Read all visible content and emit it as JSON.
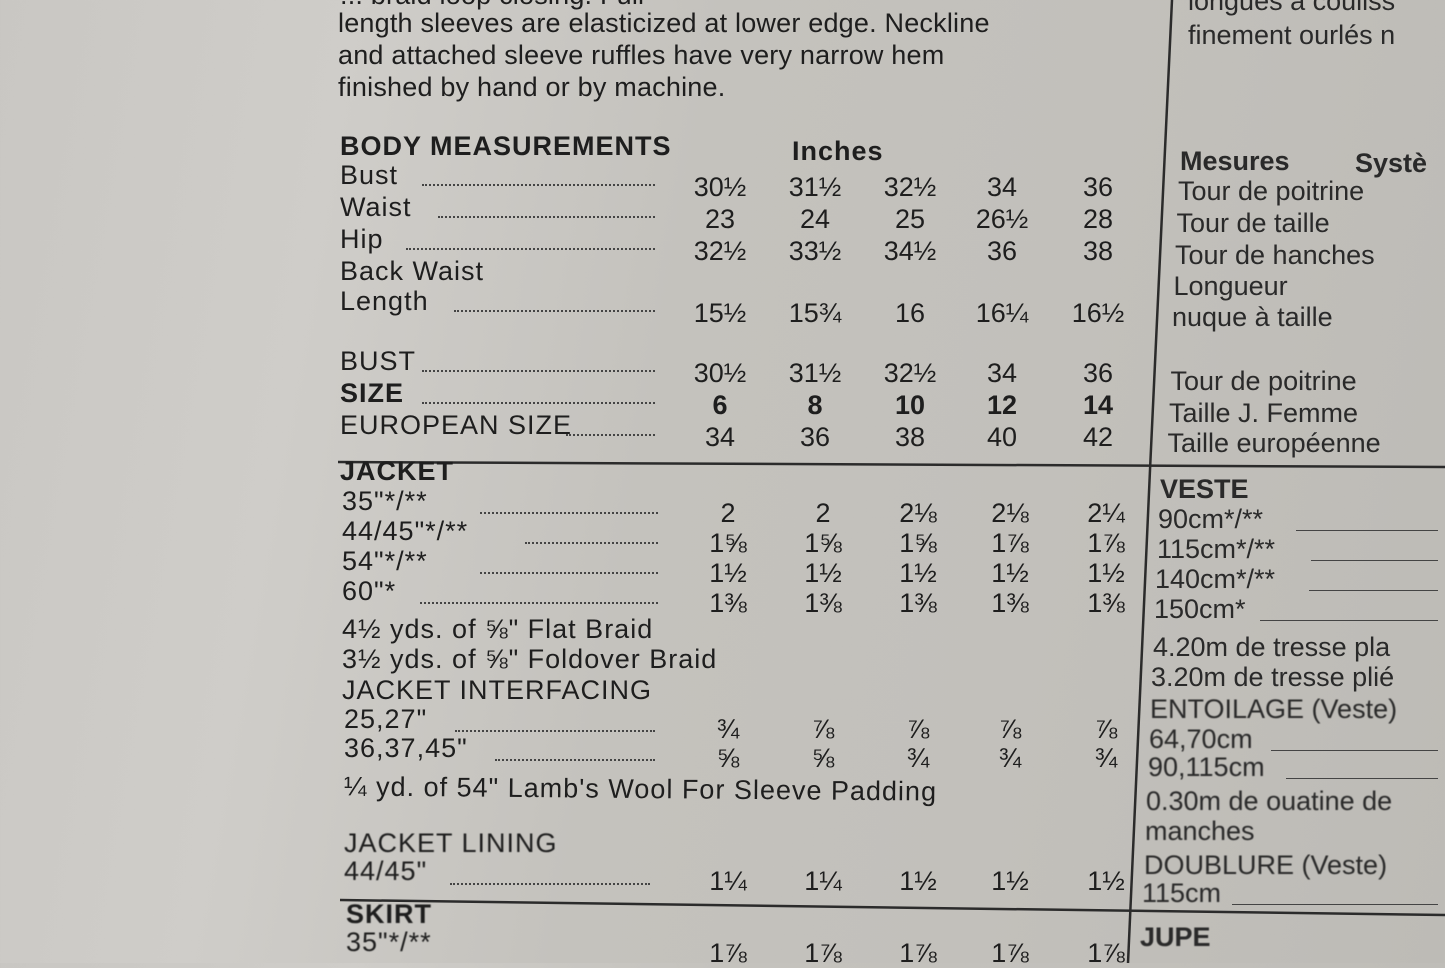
{
  "intro": {
    "lines": [
      "... braid loop closing. Full",
      "length sleeves are elasticized at lower edge. Neckline",
      "and attached sleeve ruffles have very narrow hem",
      "finished by hand or by machine."
    ]
  },
  "intro_fr": {
    "lines": [
      "longues à couliss",
      "finement ourlés n"
    ]
  },
  "body": {
    "heading": "BODY MEASUREMENTS",
    "unit": "Inches",
    "rows": [
      {
        "label": "Bust",
        "values": [
          "30½",
          "31½",
          "32½",
          "34",
          "36"
        ]
      },
      {
        "label": "Waist",
        "values": [
          "23",
          "24",
          "25",
          "26½",
          "28"
        ]
      },
      {
        "label": "Hip",
        "values": [
          "32½",
          "33½",
          "34½",
          "36",
          "38"
        ]
      },
      {
        "label": "Back Waist",
        "values": []
      },
      {
        "label": "Length",
        "values": [
          "15½",
          "15¾",
          "16",
          "16¼",
          "16½"
        ]
      },
      {
        "label": "BUST",
        "values": [
          "30½",
          "31½",
          "32½",
          "34",
          "36"
        ]
      },
      {
        "label": "SIZE",
        "values": [
          "6",
          "8",
          "10",
          "12",
          "14"
        ],
        "bold": true
      },
      {
        "label": "EUROPEAN SIZE",
        "values": [
          "34",
          "36",
          "38",
          "40",
          "42"
        ]
      }
    ]
  },
  "body_fr": {
    "heading": "Mesures",
    "heading2": "Systè",
    "rows": [
      "Tour de poitrine",
      "Tour de taille",
      "Tour de hanches",
      "Longueur",
      "nuque à taille",
      "Tour de poitrine",
      "Taille J. Femme",
      "Taille européenne"
    ]
  },
  "jacket": {
    "heading": "JACKET",
    "rows": [
      {
        "label": "35\"*/**",
        "values": [
          "2",
          "2",
          "2⅛",
          "2⅛",
          "2¼"
        ]
      },
      {
        "label": "44/45\"*/**",
        "values": [
          "1⅝",
          "1⅝",
          "1⅝",
          "1⅞",
          "1⅞"
        ]
      },
      {
        "label": "54\"*/**",
        "values": [
          "1½",
          "1½",
          "1½",
          "1½",
          "1½"
        ]
      },
      {
        "label": "60\"*",
        "values": [
          "1⅜",
          "1⅜",
          "1⅜",
          "1⅜",
          "1⅜"
        ]
      }
    ],
    "notions": [
      "4½ yds. of ⅝\" Flat Braid",
      "3½ yds. of ⅝\" Foldover Braid"
    ],
    "interfacing_heading": "JACKET INTERFACING",
    "interfacing_rows": [
      {
        "label": "25,27\"",
        "values": [
          "¾",
          "⅞",
          "⅞",
          "⅞",
          "⅞"
        ]
      },
      {
        "label": "36,37,45\"",
        "values": [
          "⅝",
          "⅝",
          "¾",
          "¾",
          "¾"
        ]
      }
    ],
    "wool_note": "¼ yd. of 54\" Lamb's Wool For Sleeve Padding",
    "lining_heading": "JACKET LINING",
    "lining_rows": [
      {
        "label": "44/45\"",
        "values": [
          "1¼",
          "1¼",
          "1½",
          "1½",
          "1½"
        ]
      }
    ]
  },
  "skirt": {
    "heading": "SKIRT",
    "rows": [
      {
        "label": "35\"*/**",
        "values": [
          "1⅞",
          "1⅞",
          "1⅞",
          "1⅞",
          "1⅞"
        ]
      }
    ]
  },
  "veste_fr": {
    "heading": "VESTE",
    "rows": [
      "90cm*/**",
      "115cm*/**",
      "140cm*/**",
      "150cm*",
      "4.20m de tresse pla",
      "3.20m de tresse plié",
      "ENTOILAGE (Veste)",
      "64,70cm",
      "90,115cm",
      "0.30m de ouatine de",
      "manches",
      "DOUBLURE (Veste)",
      "115cm"
    ],
    "skirt_heading": "JUPE"
  }
}
